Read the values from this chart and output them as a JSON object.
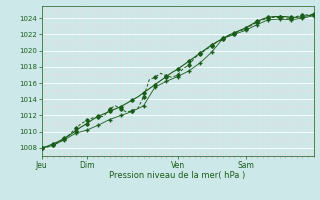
{
  "xlabel": "Pression niveau de la mer( hPa )",
  "bg_color": "#cde8e8",
  "grid_major_color": "#ffffff",
  "grid_minor_color": "#f0d8d8",
  "line_color": "#1a5c1a",
  "ylim": [
    1007.0,
    1025.5
  ],
  "yticks": [
    1008,
    1010,
    1012,
    1014,
    1016,
    1018,
    1020,
    1022,
    1024
  ],
  "day_labels": [
    "Jeu",
    "Dim",
    "Ven",
    "Sam"
  ],
  "day_positions": [
    0,
    48,
    144,
    216
  ],
  "total_hours": 288,
  "series1": [
    [
      0,
      1008.0
    ],
    [
      6,
      1008.2
    ],
    [
      12,
      1008.5
    ],
    [
      18,
      1008.8
    ],
    [
      24,
      1009.2
    ],
    [
      30,
      1009.6
    ],
    [
      36,
      1010.1
    ],
    [
      42,
      1010.6
    ],
    [
      48,
      1011.0
    ],
    [
      54,
      1011.5
    ],
    [
      60,
      1011.9
    ],
    [
      66,
      1012.2
    ],
    [
      72,
      1012.5
    ],
    [
      78,
      1012.8
    ],
    [
      84,
      1013.1
    ],
    [
      90,
      1013.5
    ],
    [
      96,
      1013.9
    ],
    [
      102,
      1014.3
    ],
    [
      108,
      1014.8
    ],
    [
      114,
      1015.3
    ],
    [
      120,
      1015.8
    ],
    [
      126,
      1016.3
    ],
    [
      132,
      1016.8
    ],
    [
      138,
      1017.3
    ],
    [
      144,
      1017.7
    ],
    [
      150,
      1018.2
    ],
    [
      156,
      1018.7
    ],
    [
      162,
      1019.2
    ],
    [
      168,
      1019.7
    ],
    [
      174,
      1020.2
    ],
    [
      180,
      1020.7
    ],
    [
      186,
      1021.1
    ],
    [
      192,
      1021.5
    ],
    [
      198,
      1021.9
    ],
    [
      204,
      1022.2
    ],
    [
      210,
      1022.5
    ],
    [
      216,
      1022.8
    ],
    [
      222,
      1023.2
    ],
    [
      228,
      1023.6
    ],
    [
      234,
      1023.9
    ],
    [
      240,
      1024.1
    ],
    [
      246,
      1024.2
    ],
    [
      252,
      1024.2
    ],
    [
      258,
      1024.2
    ],
    [
      264,
      1024.1
    ],
    [
      270,
      1024.1
    ],
    [
      276,
      1024.2
    ],
    [
      282,
      1024.3
    ],
    [
      288,
      1024.4
    ]
  ],
  "series2": [
    [
      0,
      1008.0
    ],
    [
      6,
      1008.1
    ],
    [
      12,
      1008.3
    ],
    [
      18,
      1008.7
    ],
    [
      24,
      1009.1
    ],
    [
      30,
      1009.7
    ],
    [
      36,
      1010.4
    ],
    [
      42,
      1011.0
    ],
    [
      48,
      1011.4
    ],
    [
      54,
      1011.7
    ],
    [
      60,
      1011.8
    ],
    [
      66,
      1011.9
    ],
    [
      72,
      1012.8
    ],
    [
      78,
      1013.2
    ],
    [
      84,
      1012.8
    ],
    [
      90,
      1012.4
    ],
    [
      96,
      1012.6
    ],
    [
      102,
      1012.9
    ],
    [
      108,
      1014.3
    ],
    [
      114,
      1016.4
    ],
    [
      120,
      1016.7
    ],
    [
      126,
      1017.2
    ],
    [
      132,
      1016.9
    ],
    [
      138,
      1016.7
    ],
    [
      144,
      1017.0
    ],
    [
      150,
      1017.8
    ],
    [
      156,
      1018.2
    ],
    [
      162,
      1019.1
    ],
    [
      168,
      1019.6
    ],
    [
      174,
      1020.1
    ],
    [
      180,
      1020.6
    ],
    [
      186,
      1021.1
    ],
    [
      192,
      1021.4
    ],
    [
      198,
      1021.8
    ],
    [
      204,
      1022.1
    ],
    [
      210,
      1022.4
    ],
    [
      216,
      1022.7
    ],
    [
      222,
      1023.1
    ],
    [
      228,
      1023.5
    ],
    [
      234,
      1023.8
    ],
    [
      240,
      1024.0
    ],
    [
      246,
      1024.1
    ],
    [
      252,
      1024.1
    ],
    [
      258,
      1024.0
    ],
    [
      264,
      1024.0
    ],
    [
      270,
      1024.2
    ],
    [
      276,
      1024.4
    ],
    [
      282,
      1024.4
    ],
    [
      288,
      1024.5
    ]
  ],
  "series3": [
    [
      0,
      1008.0
    ],
    [
      12,
      1008.3
    ],
    [
      24,
      1009.0
    ],
    [
      36,
      1009.8
    ],
    [
      48,
      1010.2
    ],
    [
      60,
      1010.8
    ],
    [
      72,
      1011.5
    ],
    [
      84,
      1012.0
    ],
    [
      96,
      1012.5
    ],
    [
      108,
      1013.2
    ],
    [
      120,
      1015.5
    ],
    [
      132,
      1016.2
    ],
    [
      144,
      1016.8
    ],
    [
      156,
      1017.5
    ],
    [
      168,
      1018.5
    ],
    [
      180,
      1019.8
    ],
    [
      192,
      1021.5
    ],
    [
      204,
      1022.0
    ],
    [
      216,
      1022.5
    ],
    [
      228,
      1023.2
    ],
    [
      240,
      1023.8
    ],
    [
      252,
      1023.9
    ],
    [
      264,
      1023.8
    ],
    [
      276,
      1024.0
    ],
    [
      288,
      1024.3
    ]
  ]
}
